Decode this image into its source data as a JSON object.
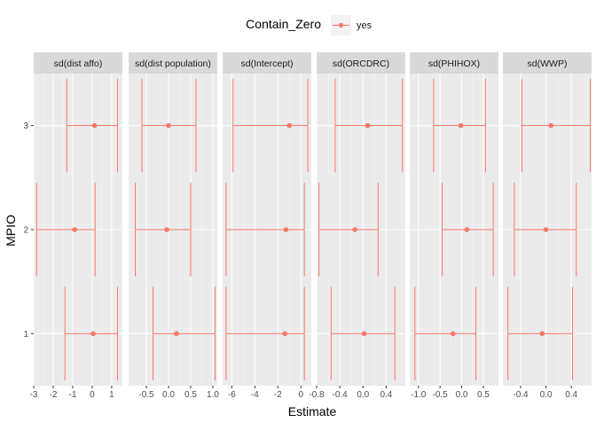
{
  "chart_data": {
    "type": "errorbar-facet",
    "legend": {
      "title": "Contain_Zero",
      "entries": [
        "yes"
      ],
      "placement": "top",
      "color": "#F8766D"
    },
    "xlabel": "Estimate",
    "ylabel": "MPIO",
    "y_categories": [
      "1",
      "2",
      "3"
    ],
    "grid": true,
    "panel_background": "#EBEBEB",
    "strip_background": "#D9D9D9",
    "panels": [
      {
        "strip": "sd(dist affo)",
        "xlim": [
          -3.0,
          1.55
        ],
        "ticks": [
          -3,
          -2,
          -1,
          0,
          1
        ],
        "tick_labels": [
          "-3",
          "-2",
          "-1",
          "0",
          "1"
        ],
        "points": [
          {
            "y": "3",
            "estimate": 0.12,
            "low": -1.3,
            "high": 1.3
          },
          {
            "y": "2",
            "estimate": -0.9,
            "low": -2.85,
            "high": 0.15
          },
          {
            "y": "1",
            "estimate": 0.05,
            "low": -1.4,
            "high": 1.3
          }
        ]
      },
      {
        "strip": "sd(dist population)",
        "xlim": [
          -0.9,
          1.1
        ],
        "ticks": [
          -0.5,
          0.0,
          0.5,
          1.0
        ],
        "tick_labels": [
          "-0.5",
          "0.0",
          "0.5",
          "1.0"
        ],
        "points": [
          {
            "y": "3",
            "estimate": 0.0,
            "low": -0.6,
            "high": 0.62
          },
          {
            "y": "2",
            "estimate": -0.04,
            "low": -0.75,
            "high": 0.5
          },
          {
            "y": "1",
            "estimate": 0.18,
            "low": -0.35,
            "high": 1.05
          }
        ]
      },
      {
        "strip": "sd(Intercept)",
        "xlim": [
          -6.8,
          0.9
        ],
        "ticks": [
          -6,
          -4,
          -2,
          0
        ],
        "tick_labels": [
          "-6",
          "-4",
          "-2",
          "0"
        ],
        "points": [
          {
            "y": "3",
            "estimate": -1.0,
            "low": -5.9,
            "high": 0.6
          },
          {
            "y": "2",
            "estimate": -1.3,
            "low": -6.5,
            "high": 0.3
          },
          {
            "y": "1",
            "estimate": -1.4,
            "low": -6.5,
            "high": 0.3
          }
        ]
      },
      {
        "strip": "sd(ORCDRC)",
        "xlim": [
          -0.8,
          0.73
        ],
        "ticks": [
          -0.8,
          -0.4,
          0.0,
          0.4
        ],
        "tick_labels": [
          "-0.8",
          "-0.4",
          "0.0",
          "0.4"
        ],
        "points": [
          {
            "y": "3",
            "estimate": 0.08,
            "low": -0.48,
            "high": 0.68
          },
          {
            "y": "2",
            "estimate": -0.14,
            "low": -0.76,
            "high": 0.26
          },
          {
            "y": "1",
            "estimate": 0.02,
            "low": -0.55,
            "high": 0.55
          }
        ]
      },
      {
        "strip": "sd(PHIHOX)",
        "xlim": [
          -1.2,
          0.85
        ],
        "ticks": [
          -1.0,
          -0.5,
          0.0,
          0.5
        ],
        "tick_labels": [
          "-1.0",
          "-0.5",
          "0.0",
          "0.5"
        ],
        "points": [
          {
            "y": "3",
            "estimate": -0.02,
            "low": -0.65,
            "high": 0.55
          },
          {
            "y": "2",
            "estimate": 0.12,
            "low": -0.45,
            "high": 0.73
          },
          {
            "y": "1",
            "estimate": -0.2,
            "low": -1.08,
            "high": 0.33
          }
        ]
      },
      {
        "strip": "sd(WWP)",
        "xlim": [
          -0.68,
          0.72
        ],
        "ticks": [
          -0.4,
          0.0,
          0.4
        ],
        "tick_labels": [
          "-0.4",
          "0.0",
          "0.4"
        ],
        "points": [
          {
            "y": "3",
            "estimate": 0.08,
            "low": -0.38,
            "high": 0.7
          },
          {
            "y": "2",
            "estimate": 0.0,
            "low": -0.5,
            "high": 0.48
          },
          {
            "y": "1",
            "estimate": -0.06,
            "low": -0.6,
            "high": 0.42
          }
        ]
      }
    ]
  }
}
